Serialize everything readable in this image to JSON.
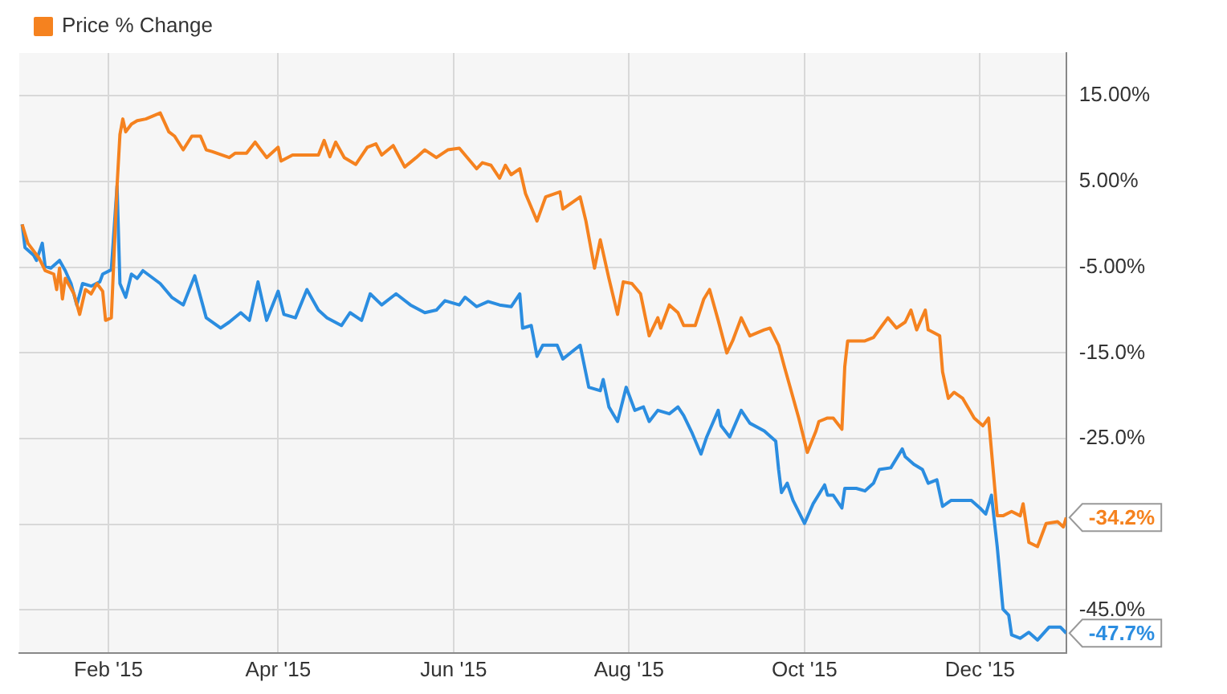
{
  "chart_data": {
    "type": "line",
    "legend": "top left",
    "grid": true,
    "marker": "none",
    "line_style": "solid",
    "xlim": [
      "2015-01-01",
      "2015-12-31"
    ],
    "xticks": [
      {
        "value": "2015-02-01",
        "label": "Feb '15"
      },
      {
        "value": "2015-04-01",
        "label": "Apr '15"
      },
      {
        "value": "2015-06-01",
        "label": "Jun '15"
      },
      {
        "value": "2015-08-01",
        "label": "Aug '15"
      },
      {
        "value": "2015-10-01",
        "label": "Oct '15"
      },
      {
        "value": "2015-12-01",
        "label": "Dec '15"
      }
    ],
    "ylim": [
      -50,
      20
    ],
    "yticks": [
      {
        "value": -45,
        "label": "-45.0%"
      },
      {
        "value": -35,
        "label": null
      },
      {
        "value": -25,
        "label": "-25.0%"
      },
      {
        "value": -15,
        "label": "-15.0%"
      },
      {
        "value": -5,
        "label": "-5.00%"
      },
      {
        "value": 5,
        "label": "5.00%"
      },
      {
        "value": 15,
        "label": "15.00%"
      }
    ],
    "annotations": [
      {
        "text": "-34.2%",
        "x": "2015-12-31",
        "y": -34.2
      },
      {
        "text": "-47.7%",
        "x": "2015-12-31",
        "y": -47.7
      }
    ],
    "series": [
      {
        "name": "Price % Change",
        "color": "#f5821f",
        "x": [
          "2015-01-02",
          "2015-01-04",
          "2015-01-08",
          "2015-01-10",
          "2015-01-13",
          "2015-01-14",
          "2015-01-15",
          "2015-01-16",
          "2015-01-17",
          "2015-01-20",
          "2015-01-22",
          "2015-01-24",
          "2015-01-26",
          "2015-01-28",
          "2015-01-30",
          "2015-01-31",
          "2015-02-02",
          "2015-02-04",
          "2015-02-05",
          "2015-02-06",
          "2015-02-07",
          "2015-02-09",
          "2015-02-11",
          "2015-02-14",
          "2015-02-19",
          "2015-02-22",
          "2015-02-24",
          "2015-02-27",
          "2015-03-02",
          "2015-03-05",
          "2015-03-07",
          "2015-03-09",
          "2015-03-15",
          "2015-03-17",
          "2015-03-21",
          "2015-03-24",
          "2015-03-28",
          "2015-04-01",
          "2015-04-02",
          "2015-04-06",
          "2015-04-10",
          "2015-04-15",
          "2015-04-17",
          "2015-04-19",
          "2015-04-21",
          "2015-04-24",
          "2015-04-28",
          "2015-05-02",
          "2015-05-05",
          "2015-05-07",
          "2015-05-11",
          "2015-05-15",
          "2015-05-19",
          "2015-05-22",
          "2015-05-26",
          "2015-05-30",
          "2015-06-03",
          "2015-06-05",
          "2015-06-09",
          "2015-06-11",
          "2015-06-14",
          "2015-06-17",
          "2015-06-19",
          "2015-06-21",
          "2015-06-24",
          "2015-06-26",
          "2015-06-30",
          "2015-07-03",
          "2015-07-08",
          "2015-07-09",
          "2015-07-15",
          "2015-07-17",
          "2015-07-20",
          "2015-07-22",
          "2015-07-25",
          "2015-07-28",
          "2015-07-30",
          "2015-08-02",
          "2015-08-05",
          "2015-08-08",
          "2015-08-11",
          "2015-08-12",
          "2015-08-15",
          "2015-08-18",
          "2015-08-20",
          "2015-08-24",
          "2015-08-27",
          "2015-08-29",
          "2015-09-01",
          "2015-09-04",
          "2015-09-06",
          "2015-09-09",
          "2015-09-12",
          "2015-09-17",
          "2015-09-19",
          "2015-09-22",
          "2015-09-24",
          "2015-09-26",
          "2015-09-29",
          "2015-10-02",
          "2015-10-05",
          "2015-10-06",
          "2015-10-09",
          "2015-10-11",
          "2015-10-14",
          "2015-10-15",
          "2015-10-16",
          "2015-10-22",
          "2015-10-25",
          "2015-10-28",
          "2015-10-30",
          "2015-11-02",
          "2015-11-05",
          "2015-11-07",
          "2015-11-09",
          "2015-11-12",
          "2015-11-13",
          "2015-11-17",
          "2015-11-18",
          "2015-11-20",
          "2015-11-22",
          "2015-11-25",
          "2015-11-29",
          "2015-12-02",
          "2015-12-04",
          "2015-12-07",
          "2015-12-09",
          "2015-12-12",
          "2015-12-15",
          "2015-12-16",
          "2015-12-18",
          "2015-12-21",
          "2015-12-24",
          "2015-12-28",
          "2015-12-30",
          "2015-12-31"
        ],
        "values": [
          0,
          -2.2,
          -4.0,
          -5.4,
          -5.8,
          -7.6,
          -5.1,
          -8.7,
          -6.3,
          -8.1,
          -10.5,
          -7.6,
          -8.1,
          -6.9,
          -7.8,
          -11.2,
          -10.9,
          4.5,
          10.5,
          12.3,
          10.8,
          11.7,
          12.1,
          12.3,
          13.0,
          10.8,
          10.3,
          8.7,
          10.3,
          10.3,
          8.7,
          8.5,
          7.8,
          8.3,
          8.3,
          9.6,
          7.8,
          9.0,
          7.4,
          8.1,
          8.1,
          8.1,
          9.8,
          7.9,
          9.6,
          7.8,
          7.0,
          9.0,
          9.4,
          8.1,
          9.2,
          6.7,
          7.8,
          8.7,
          7.8,
          8.7,
          8.9,
          8.1,
          6.5,
          7.2,
          6.9,
          5.4,
          6.9,
          5.8,
          6.5,
          3.6,
          0.4,
          3.2,
          3.8,
          1.8,
          3.2,
          0.4,
          -5.1,
          -1.8,
          -6.3,
          -10.5,
          -6.7,
          -6.9,
          -8.1,
          -13.0,
          -10.9,
          -12.1,
          -9.4,
          -10.3,
          -11.8,
          -11.8,
          -8.7,
          -7.6,
          -11.2,
          -15.0,
          -13.6,
          -10.9,
          -13.0,
          -12.3,
          -12.1,
          -14.1,
          -16.6,
          -19.0,
          -22.6,
          -26.6,
          -24.1,
          -23.0,
          -22.6,
          -22.6,
          -23.9,
          -16.6,
          -13.6,
          -13.6,
          -13.2,
          -11.8,
          -10.9,
          -12.1,
          -11.4,
          -10.0,
          -12.3,
          -10.0,
          -12.3,
          -13.0,
          -17.2,
          -20.3,
          -19.6,
          -20.3,
          -22.6,
          -23.5,
          -22.6,
          -34.0,
          -34.0,
          -33.5,
          -34.0,
          -32.6,
          -37.1,
          -37.6,
          -34.9,
          -34.7,
          -35.3,
          -34.2
        ]
      },
      {
        "color": "#2b8de0",
        "x": [
          "2015-01-02",
          "2015-01-03",
          "2015-01-06",
          "2015-01-07",
          "2015-01-09",
          "2015-01-10",
          "2015-01-12",
          "2015-01-15",
          "2015-01-17",
          "2015-01-19",
          "2015-01-21",
          "2015-01-23",
          "2015-01-26",
          "2015-01-29",
          "2015-01-30",
          "2015-02-02",
          "2015-02-04",
          "2015-02-05",
          "2015-02-07",
          "2015-02-09",
          "2015-02-11",
          "2015-02-13",
          "2015-02-19",
          "2015-02-23",
          "2015-02-27",
          "2015-03-03",
          "2015-03-07",
          "2015-03-12",
          "2015-03-15",
          "2015-03-19",
          "2015-03-22",
          "2015-03-25",
          "2015-03-28",
          "2015-04-01",
          "2015-04-03",
          "2015-04-07",
          "2015-04-11",
          "2015-04-15",
          "2015-04-18",
          "2015-04-23",
          "2015-04-26",
          "2015-04-30",
          "2015-05-03",
          "2015-05-07",
          "2015-05-12",
          "2015-05-17",
          "2015-05-22",
          "2015-05-26",
          "2015-05-29",
          "2015-06-03",
          "2015-06-05",
          "2015-06-09",
          "2015-06-13",
          "2015-06-17",
          "2015-06-21",
          "2015-06-24",
          "2015-06-25",
          "2015-06-28",
          "2015-06-29",
          "2015-06-30",
          "2015-07-02",
          "2015-07-07",
          "2015-07-09",
          "2015-07-15",
          "2015-07-18",
          "2015-07-22",
          "2015-07-23",
          "2015-07-25",
          "2015-07-28",
          "2015-07-31",
          "2015-08-03",
          "2015-08-06",
          "2015-08-08",
          "2015-08-11",
          "2015-08-15",
          "2015-08-18",
          "2015-08-20",
          "2015-08-23",
          "2015-08-26",
          "2015-08-28",
          "2015-09-01",
          "2015-09-02",
          "2015-09-05",
          "2015-09-09",
          "2015-09-12",
          "2015-09-17",
          "2015-09-21",
          "2015-09-22",
          "2015-09-23",
          "2015-09-25",
          "2015-09-27",
          "2015-10-01",
          "2015-10-04",
          "2015-10-08",
          "2015-10-09",
          "2015-10-11",
          "2015-10-14",
          "2015-10-15",
          "2015-10-19",
          "2015-10-22",
          "2015-10-25",
          "2015-10-27",
          "2015-10-31",
          "2015-11-04",
          "2015-11-05",
          "2015-11-08",
          "2015-11-11",
          "2015-11-13",
          "2015-11-16",
          "2015-11-18",
          "2015-11-21",
          "2015-11-28",
          "2015-12-01",
          "2015-12-03",
          "2015-12-05",
          "2015-12-07",
          "2015-12-09",
          "2015-12-11",
          "2015-12-12",
          "2015-12-15",
          "2015-12-18",
          "2015-12-21",
          "2015-12-25",
          "2015-12-29",
          "2015-12-31"
        ],
        "values": [
          0,
          -2.7,
          -3.6,
          -4.2,
          -2.2,
          -4.9,
          -5.1,
          -4.2,
          -5.4,
          -6.9,
          -9.4,
          -6.9,
          -7.2,
          -6.7,
          -5.8,
          -5.3,
          4.5,
          -6.9,
          -8.5,
          -5.8,
          -6.3,
          -5.4,
          -6.9,
          -8.5,
          -9.4,
          -6.0,
          -10.9,
          -12.1,
          -11.4,
          -10.3,
          -11.2,
          -6.7,
          -11.2,
          -7.8,
          -10.5,
          -10.9,
          -7.6,
          -10.0,
          -10.9,
          -11.8,
          -10.3,
          -11.2,
          -8.1,
          -9.4,
          -8.1,
          -9.4,
          -10.3,
          -10.0,
          -8.9,
          -9.4,
          -8.5,
          -9.6,
          -9.0,
          -9.4,
          -9.6,
          -8.1,
          -12.1,
          -11.8,
          -13.6,
          -15.4,
          -14.1,
          -14.1,
          -15.7,
          -14.1,
          -19.0,
          -19.4,
          -18.1,
          -21.3,
          -23.0,
          -19.0,
          -21.7,
          -21.3,
          -23.0,
          -21.7,
          -22.1,
          -21.3,
          -22.3,
          -24.4,
          -26.8,
          -24.8,
          -21.7,
          -23.5,
          -24.8,
          -21.7,
          -23.2,
          -24.1,
          -25.3,
          -28.6,
          -31.3,
          -30.2,
          -32.2,
          -34.9,
          -32.6,
          -30.4,
          -31.6,
          -31.6,
          -33.1,
          -30.8,
          -30.8,
          -31.1,
          -30.2,
          -28.6,
          -28.4,
          -26.2,
          -27.1,
          -28.0,
          -28.6,
          -30.2,
          -29.8,
          -32.9,
          -32.2,
          -32.2,
          -33.1,
          -33.8,
          -31.6,
          -37.6,
          -44.9,
          -45.6,
          -47.9,
          -48.3,
          -47.6,
          -48.5,
          -47.0,
          -47.0,
          -47.7
        ]
      }
    ]
  }
}
